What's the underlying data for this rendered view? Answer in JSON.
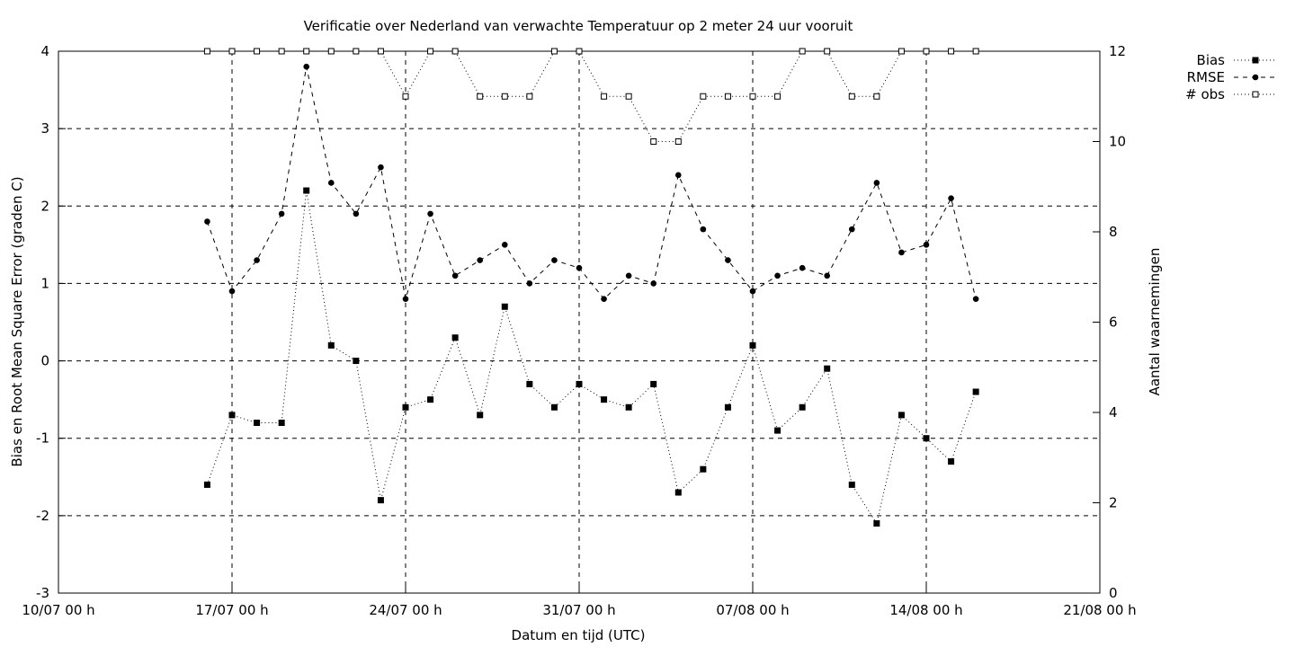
{
  "chart_data": {
    "type": "line",
    "title": "Verificatie over Nederland van verwachte Temperatuur op 2 meter 24 uur vooruit",
    "xlabel": "Datum en tijd (UTC)",
    "ylabel": "Bias en Root Mean Square Error (graden C)",
    "y2label": "Aantal waarnemingen",
    "x_ticks": [
      "10/07 00 h",
      "17/07 00 h",
      "24/07 00 h",
      "31/07 00 h",
      "07/08 00 h",
      "14/08 00 h",
      "21/08 00 h"
    ],
    "x_tick_days": [
      0,
      7,
      14,
      21,
      28,
      35,
      42
    ],
    "xlim_days": [
      0,
      42
    ],
    "ylim": [
      -3,
      4
    ],
    "y_ticks": [
      "-3",
      "-2",
      "-1",
      "0",
      "1",
      "2",
      "3",
      "4"
    ],
    "y2lim": [
      0,
      12
    ],
    "y2_ticks": [
      "0",
      "2",
      "4",
      "6",
      "8",
      "10",
      "12"
    ],
    "grid": true,
    "legend_position": "outside-top-right",
    "x_days": [
      6,
      7,
      8,
      9,
      10,
      11,
      12,
      13,
      14,
      15,
      16,
      17,
      18,
      19,
      20,
      21,
      22,
      23,
      24,
      25,
      26,
      27,
      28,
      29,
      30,
      31,
      32,
      33,
      34,
      35,
      36,
      37
    ],
    "series": [
      {
        "name": "Bias",
        "axis": "y1",
        "marker": "filled-square",
        "values": [
          -1.6,
          -0.7,
          -0.8,
          -0.8,
          2.2,
          0.2,
          0.0,
          -1.8,
          -0.6,
          -0.5,
          0.3,
          -0.7,
          0.7,
          -0.3,
          -0.6,
          -0.3,
          -0.5,
          -0.6,
          -0.3,
          -1.7,
          -1.4,
          -0.6,
          0.2,
          -0.9,
          -0.6,
          -0.1,
          -1.6,
          -2.1,
          -0.7,
          -1.0,
          -1.3,
          -0.4
        ]
      },
      {
        "name": "RMSE",
        "axis": "y1",
        "marker": "filled-circle",
        "values": [
          1.8,
          0.9,
          1.3,
          1.9,
          3.8,
          2.3,
          1.9,
          2.5,
          0.8,
          1.9,
          1.1,
          1.3,
          1.5,
          1.0,
          1.3,
          1.2,
          0.8,
          1.1,
          1.0,
          2.4,
          1.7,
          1.3,
          0.9,
          1.1,
          1.2,
          1.1,
          1.7,
          2.3,
          1.4,
          1.5,
          2.1,
          0.8
        ]
      },
      {
        "name": "# obs",
        "axis": "y2",
        "marker": "open-square",
        "values": [
          12,
          12,
          12,
          12,
          12,
          12,
          12,
          12,
          11,
          12,
          12,
          11,
          11,
          11,
          12,
          12,
          11,
          11,
          10,
          10,
          11,
          11,
          11,
          11,
          12,
          12,
          11,
          11,
          12,
          12,
          12,
          12
        ]
      }
    ]
  }
}
